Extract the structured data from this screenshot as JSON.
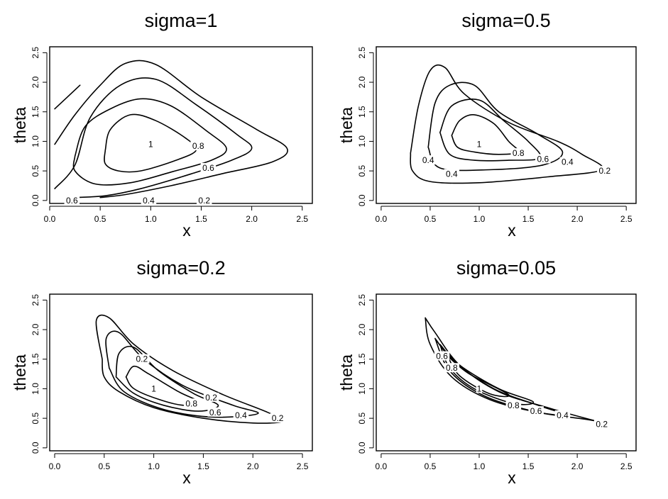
{
  "chart_data": [
    {
      "type": "contour",
      "title": "sigma=1",
      "xlabel": "x",
      "ylabel": "theta",
      "xlim": [
        0,
        2.6
      ],
      "ylim": [
        -0.05,
        2.6
      ],
      "x_ticks": [
        "0.0",
        "0.5",
        "1.0",
        "1.5",
        "2.0",
        "2.5"
      ],
      "y_ticks": [
        "0.0",
        "0.5",
        "1.0",
        "1.5",
        "2.0",
        "2.5"
      ],
      "contours": [
        {
          "level": "1",
          "points": [
            [
              0.55,
              0.85
            ],
            [
              0.6,
              1.2
            ],
            [
              0.8,
              1.45
            ],
            [
              1.05,
              1.35
            ],
            [
              1.35,
              1.05
            ],
            [
              1.45,
              0.85
            ],
            [
              1.25,
              0.68
            ],
            [
              0.9,
              0.5
            ],
            [
              0.68,
              0.5
            ],
            [
              0.55,
              0.62
            ],
            [
              0.55,
              0.85
            ]
          ]
        },
        {
          "level": "0.8",
          "points": [
            [
              0.25,
              0.75
            ],
            [
              0.35,
              1.25
            ],
            [
              0.6,
              1.55
            ],
            [
              0.9,
              1.72
            ],
            [
              1.2,
              1.6
            ],
            [
              1.55,
              1.18
            ],
            [
              1.75,
              0.88
            ],
            [
              1.6,
              0.68
            ],
            [
              1.2,
              0.48
            ],
            [
              0.8,
              0.3
            ],
            [
              0.45,
              0.28
            ],
            [
              0.25,
              0.5
            ],
            [
              0.25,
              0.75
            ]
          ]
        },
        {
          "level": "0.6",
          "points": [
            [
              0.05,
              0.2
            ],
            [
              0.25,
              0.6
            ],
            [
              0.4,
              1.4
            ],
            [
              0.7,
              1.95
            ],
            [
              1.05,
              2.05
            ],
            [
              1.45,
              1.62
            ],
            [
              1.85,
              1.12
            ],
            [
              2.0,
              0.88
            ],
            [
              1.8,
              0.68
            ],
            [
              1.4,
              0.45
            ],
            [
              0.9,
              0.2
            ],
            [
              0.55,
              0.08
            ],
            [
              0.25,
              0.05
            ]
          ]
        },
        {
          "level": "0.4",
          "points": [
            [
              0.05,
              0.95
            ],
            [
              0.25,
              1.45
            ],
            [
              0.5,
              1.95
            ],
            [
              0.75,
              2.32
            ],
            [
              1.05,
              2.3
            ],
            [
              1.5,
              1.75
            ],
            [
              2.05,
              1.2
            ],
            [
              2.35,
              0.88
            ],
            [
              2.2,
              0.65
            ],
            [
              1.7,
              0.45
            ],
            [
              1.2,
              0.25
            ],
            [
              0.75,
              0.1
            ],
            [
              0.5,
              0.05
            ]
          ]
        },
        {
          "level": "0.2",
          "points": [
            [
              0.05,
              1.55
            ],
            [
              0.3,
              1.95
            ]
          ]
        }
      ],
      "labels": [
        {
          "text": "1",
          "x": 1.0,
          "y": 0.95
        },
        {
          "text": "0.8",
          "x": 1.47,
          "y": 0.92
        },
        {
          "text": "0.6",
          "x": 1.57,
          "y": 0.55
        },
        {
          "text": "0.6",
          "x": 0.22,
          "y": 0.0
        },
        {
          "text": "0.4",
          "x": 0.98,
          "y": 0.0
        },
        {
          "text": "0.2",
          "x": 1.53,
          "y": 0.0
        }
      ]
    },
    {
      "type": "contour",
      "title": "sigma=0.5",
      "xlabel": "x",
      "ylabel": "theta",
      "xlim": [
        -0.05,
        2.6
      ],
      "ylim": [
        -0.05,
        2.6
      ],
      "x_ticks": [
        "0.0",
        "0.5",
        "1.0",
        "1.5",
        "2.0",
        "2.5"
      ],
      "y_ticks": [
        "0.0",
        "0.5",
        "1.0",
        "1.5",
        "2.0",
        "2.5"
      ],
      "contours": [
        {
          "level": "1",
          "points": [
            [
              0.72,
              1.1
            ],
            [
              0.8,
              1.35
            ],
            [
              0.95,
              1.45
            ],
            [
              1.15,
              1.3
            ],
            [
              1.3,
              1.0
            ],
            [
              1.4,
              0.82
            ],
            [
              1.2,
              0.78
            ],
            [
              0.95,
              0.82
            ],
            [
              0.78,
              0.9
            ],
            [
              0.72,
              1.1
            ]
          ]
        },
        {
          "level": "0.8",
          "points": [
            [
              0.6,
              1.15
            ],
            [
              0.72,
              1.6
            ],
            [
              1.0,
              1.7
            ],
            [
              1.25,
              1.35
            ],
            [
              1.5,
              1.0
            ],
            [
              1.62,
              0.72
            ],
            [
              1.3,
              0.68
            ],
            [
              0.95,
              0.68
            ],
            [
              0.7,
              0.78
            ],
            [
              0.6,
              1.15
            ]
          ]
        },
        {
          "level": "0.6",
          "points": [
            [
              0.48,
              0.9
            ],
            [
              0.55,
              1.65
            ],
            [
              0.7,
              1.95
            ],
            [
              0.95,
              1.95
            ],
            [
              1.2,
              1.5
            ],
            [
              1.6,
              1.12
            ],
            [
              1.85,
              0.82
            ],
            [
              1.65,
              0.6
            ],
            [
              1.1,
              0.52
            ],
            [
              0.6,
              0.55
            ],
            [
              0.48,
              0.9
            ]
          ]
        },
        {
          "level": "0.4",
          "points": [
            [
              0.3,
              0.8
            ],
            [
              0.38,
              1.6
            ],
            [
              0.5,
              2.2
            ],
            [
              0.65,
              2.25
            ],
            [
              0.85,
              1.8
            ],
            [
              1.3,
              1.32
            ],
            [
              1.8,
              1.0
            ],
            [
              2.05,
              0.78
            ],
            [
              2.25,
              0.52
            ],
            [
              1.7,
              0.4
            ],
            [
              1.0,
              0.3
            ],
            [
              0.5,
              0.32
            ],
            [
              0.32,
              0.5
            ],
            [
              0.3,
              0.8
            ]
          ]
        }
      ],
      "labels": [
        {
          "text": "1",
          "x": 1.0,
          "y": 0.95
        },
        {
          "text": "0.8",
          "x": 1.4,
          "y": 0.8
        },
        {
          "text": "0.6",
          "x": 1.65,
          "y": 0.7
        },
        {
          "text": "0.4",
          "x": 1.9,
          "y": 0.65
        },
        {
          "text": "0.4",
          "x": 0.48,
          "y": 0.68
        },
        {
          "text": "0.4",
          "x": 0.72,
          "y": 0.45
        },
        {
          "text": "0.2",
          "x": 2.28,
          "y": 0.5
        }
      ]
    },
    {
      "type": "contour",
      "title": "sigma=0.2",
      "xlabel": "x",
      "ylabel": "theta",
      "xlim": [
        -0.05,
        2.6
      ],
      "ylim": [
        -0.05,
        2.6
      ],
      "x_ticks": [
        "0.0",
        "0.5",
        "1.0",
        "1.5",
        "2.0",
        "2.5"
      ],
      "y_ticks": [
        "0.0",
        "0.5",
        "1.0",
        "1.5",
        "2.0",
        "2.5"
      ],
      "contours": [
        {
          "level": "1",
          "points": [
            [
              0.72,
              1.2
            ],
            [
              0.8,
              1.38
            ],
            [
              0.95,
              1.25
            ],
            [
              1.25,
              0.95
            ],
            [
              1.45,
              0.78
            ],
            [
              1.3,
              0.72
            ],
            [
              1.05,
              0.82
            ],
            [
              0.8,
              1.0
            ],
            [
              0.72,
              1.2
            ]
          ]
        },
        {
          "level": "0.8",
          "points": [
            [
              0.62,
              1.2
            ],
            [
              0.65,
              1.6
            ],
            [
              0.8,
              1.7
            ],
            [
              1.05,
              1.3
            ],
            [
              1.4,
              0.92
            ],
            [
              1.65,
              0.72
            ],
            [
              1.45,
              0.62
            ],
            [
              1.1,
              0.72
            ],
            [
              0.8,
              0.92
            ],
            [
              0.62,
              1.2
            ]
          ]
        },
        {
          "level": "0.6",
          "points": [
            [
              0.55,
              1.35
            ],
            [
              0.52,
              1.85
            ],
            [
              0.65,
              1.95
            ],
            [
              0.9,
              1.5
            ],
            [
              1.3,
              1.05
            ],
            [
              1.8,
              0.72
            ],
            [
              2.05,
              0.58
            ],
            [
              1.6,
              0.52
            ],
            [
              1.1,
              0.65
            ],
            [
              0.7,
              0.95
            ],
            [
              0.55,
              1.35
            ]
          ]
        },
        {
          "level": "0.4",
          "points": [
            [
              0.48,
              1.5
            ],
            [
              0.42,
              2.15
            ],
            [
              0.55,
              2.2
            ],
            [
              0.8,
              1.75
            ],
            [
              1.2,
              1.3
            ],
            [
              1.7,
              0.9
            ],
            [
              2.15,
              0.6
            ],
            [
              2.3,
              0.45
            ],
            [
              2.0,
              0.42
            ],
            [
              1.5,
              0.5
            ],
            [
              1.0,
              0.68
            ],
            [
              0.65,
              0.95
            ],
            [
              0.5,
              1.2
            ],
            [
              0.48,
              1.5
            ]
          ]
        }
      ],
      "labels": [
        {
          "text": "0.2",
          "x": 0.88,
          "y": 1.5
        },
        {
          "text": "1",
          "x": 1.0,
          "y": 1.0
        },
        {
          "text": "0.2",
          "x": 1.58,
          "y": 0.85
        },
        {
          "text": "0.8",
          "x": 1.38,
          "y": 0.75
        },
        {
          "text": "0.6",
          "x": 1.62,
          "y": 0.6
        },
        {
          "text": "0.4",
          "x": 1.88,
          "y": 0.55
        },
        {
          "text": "0.2",
          "x": 2.25,
          "y": 0.5
        }
      ]
    },
    {
      "type": "contour",
      "title": "sigma=0.05",
      "xlabel": "x",
      "ylabel": "theta",
      "xlim": [
        -0.05,
        2.6
      ],
      "ylim": [
        -0.05,
        2.6
      ],
      "x_ticks": [
        "0.0",
        "0.5",
        "1.0",
        "1.5",
        "2.0",
        "2.5"
      ],
      "y_ticks": [
        "0.0",
        "0.5",
        "1.0",
        "1.5",
        "2.0",
        "2.5"
      ],
      "contours": [
        {
          "level": "0.2",
          "points": [
            [
              0.45,
              2.2
            ],
            [
              0.55,
              1.95
            ],
            [
              0.8,
              1.4
            ],
            [
              1.2,
              0.95
            ],
            [
              1.7,
              0.68
            ],
            [
              2.2,
              0.45
            ],
            [
              2.3,
              0.42
            ],
            [
              2.1,
              0.48
            ],
            [
              1.6,
              0.6
            ],
            [
              1.1,
              0.82
            ],
            [
              0.72,
              1.2
            ],
            [
              0.5,
              1.75
            ],
            [
              0.45,
              2.2
            ]
          ]
        },
        {
          "level": "0.4",
          "points": [
            [
              0.55,
              1.85
            ],
            [
              0.75,
              1.45
            ],
            [
              1.15,
              1.0
            ],
            [
              1.6,
              0.72
            ],
            [
              1.9,
              0.55
            ],
            [
              1.55,
              0.62
            ],
            [
              1.05,
              0.88
            ],
            [
              0.7,
              1.3
            ],
            [
              0.55,
              1.85
            ]
          ]
        },
        {
          "level": "0.6",
          "points": [
            [
              0.6,
              1.75
            ],
            [
              0.8,
              1.4
            ],
            [
              1.2,
              1.0
            ],
            [
              1.55,
              0.78
            ],
            [
              1.35,
              0.75
            ],
            [
              0.95,
              1.0
            ],
            [
              0.7,
              1.35
            ],
            [
              0.6,
              1.75
            ]
          ]
        },
        {
          "level": "0.8",
          "points": [
            [
              0.68,
              1.55
            ],
            [
              0.9,
              1.25
            ],
            [
              1.3,
              0.9
            ],
            [
              1.1,
              0.92
            ],
            [
              0.8,
              1.22
            ],
            [
              0.68,
              1.55
            ]
          ]
        }
      ],
      "labels": [
        {
          "text": "0.6",
          "x": 0.62,
          "y": 1.55
        },
        {
          "text": "0.8",
          "x": 0.72,
          "y": 1.35
        },
        {
          "text": "1",
          "x": 1.0,
          "y": 1.0
        },
        {
          "text": "0.8",
          "x": 1.35,
          "y": 0.72
        },
        {
          "text": "0.6",
          "x": 1.58,
          "y": 0.62
        },
        {
          "text": "0.4",
          "x": 1.85,
          "y": 0.55
        },
        {
          "text": "0.2",
          "x": 2.25,
          "y": 0.4
        }
      ]
    }
  ]
}
